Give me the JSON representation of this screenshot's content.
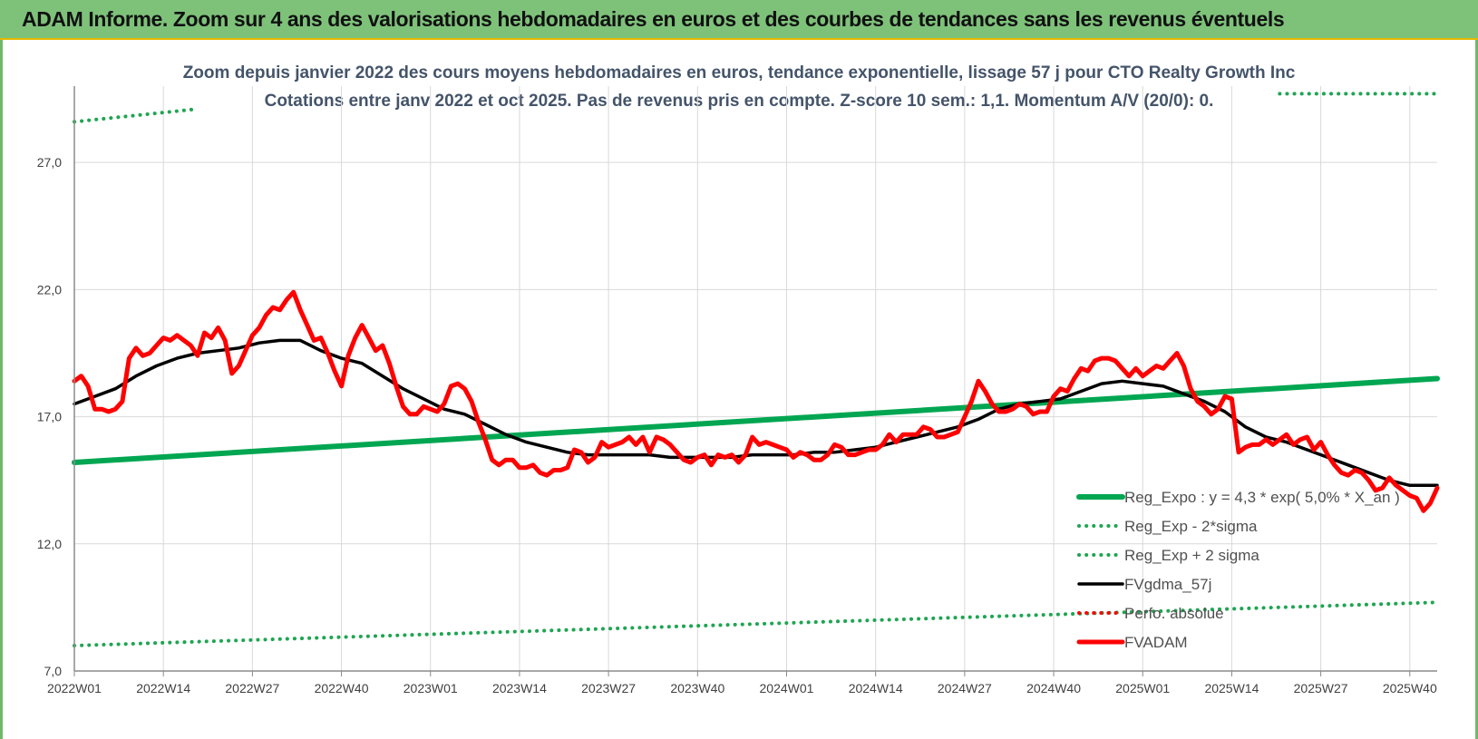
{
  "banner": {
    "title": "ADAM Informe. Zoom sur 4 ans des valorisations hebdomadaires en euros et des courbes de tendances sans les revenus éventuels"
  },
  "colors": {
    "green": "#00a651",
    "black": "#000000",
    "red": "#ff0000",
    "dotted_green": "#1fa552",
    "grid": "#d9d9d9",
    "banner": "#7ec27a"
  },
  "chart_data": {
    "type": "line",
    "title": "Zoom depuis janvier 2022 des cours moyens hebdomadaires en euros, tendance exponentielle, lissage 57 j pour CTO Realty Growth Inc",
    "subtitle": "Cotations entre janv 2022 et oct 2025. Pas de revenus pris en compte. Z-score 10 sem.: 1,1. Momentum A/V (20/0): 0.",
    "xlabel": "",
    "ylabel": "",
    "ylim": [
      7,
      30
    ],
    "yticks": [
      "7,0",
      "12,0",
      "17,0",
      "22,0",
      "27,0"
    ],
    "ytick_values": [
      7,
      12,
      17,
      22,
      27
    ],
    "grid": true,
    "legend_position": "right",
    "x_ticks": [
      {
        "label": "2022W01",
        "week": 0
      },
      {
        "label": "2022W14",
        "week": 13
      },
      {
        "label": "2022W27",
        "week": 26
      },
      {
        "label": "2022W40",
        "week": 39
      },
      {
        "label": "2023W01",
        "week": 52
      },
      {
        "label": "2023W14",
        "week": 65
      },
      {
        "label": "2023W27",
        "week": 78
      },
      {
        "label": "2023W40",
        "week": 91
      },
      {
        "label": "2024W01",
        "week": 104
      },
      {
        "label": "2024W14",
        "week": 117
      },
      {
        "label": "2024W27",
        "week": 130
      },
      {
        "label": "2024W40",
        "week": 143
      },
      {
        "label": "2025W01",
        "week": 156
      },
      {
        "label": "2025W14",
        "week": 169
      },
      {
        "label": "2025W27",
        "week": 182
      },
      {
        "label": "2025W40",
        "week": 195
      }
    ],
    "x_last_week": 199,
    "series": [
      {
        "name": "Reg_Expo : y = 4,3 * exp( 5,0% * X_an )",
        "style": "solid-green",
        "points": [
          [
            0,
            15.2
          ],
          [
            199,
            18.5
          ]
        ]
      },
      {
        "name": "Reg_Exp - 2*sigma",
        "style": "dotted-green",
        "points": [
          [
            0,
            8.0
          ],
          [
            199,
            9.7
          ]
        ]
      },
      {
        "name": "Reg_Exp + 2 sigma",
        "style": "dotted-green",
        "segments": [
          [
            [
              0,
              28.6
            ],
            [
              18,
              29.1
            ]
          ],
          [
            [
              176,
              29.7
            ],
            [
              199,
              29.7
            ]
          ]
        ]
      },
      {
        "name": "FVgdma_57j",
        "style": "solid-black",
        "points": [
          [
            0,
            17.5
          ],
          [
            3,
            17.8
          ],
          [
            6,
            18.1
          ],
          [
            9,
            18.6
          ],
          [
            12,
            19.0
          ],
          [
            15,
            19.3
          ],
          [
            18,
            19.5
          ],
          [
            21,
            19.6
          ],
          [
            24,
            19.7
          ],
          [
            27,
            19.9
          ],
          [
            30,
            20.0
          ],
          [
            33,
            20.0
          ],
          [
            36,
            19.6
          ],
          [
            39,
            19.3
          ],
          [
            42,
            19.1
          ],
          [
            45,
            18.6
          ],
          [
            48,
            18.1
          ],
          [
            51,
            17.7
          ],
          [
            54,
            17.3
          ],
          [
            57,
            17.1
          ],
          [
            60,
            16.7
          ],
          [
            63,
            16.3
          ],
          [
            66,
            16.0
          ],
          [
            69,
            15.8
          ],
          [
            72,
            15.6
          ],
          [
            75,
            15.5
          ],
          [
            78,
            15.5
          ],
          [
            81,
            15.5
          ],
          [
            84,
            15.5
          ],
          [
            87,
            15.4
          ],
          [
            90,
            15.4
          ],
          [
            93,
            15.4
          ],
          [
            96,
            15.4
          ],
          [
            99,
            15.5
          ],
          [
            102,
            15.5
          ],
          [
            105,
            15.5
          ],
          [
            108,
            15.6
          ],
          [
            111,
            15.6
          ],
          [
            114,
            15.7
          ],
          [
            117,
            15.8
          ],
          [
            120,
            16.0
          ],
          [
            123,
            16.2
          ],
          [
            126,
            16.4
          ],
          [
            129,
            16.6
          ],
          [
            132,
            16.9
          ],
          [
            135,
            17.3
          ],
          [
            138,
            17.5
          ],
          [
            141,
            17.6
          ],
          [
            144,
            17.7
          ],
          [
            147,
            18.0
          ],
          [
            150,
            18.3
          ],
          [
            153,
            18.4
          ],
          [
            156,
            18.3
          ],
          [
            159,
            18.2
          ],
          [
            162,
            17.9
          ],
          [
            165,
            17.6
          ],
          [
            168,
            17.2
          ],
          [
            171,
            16.6
          ],
          [
            174,
            16.2
          ],
          [
            177,
            16.0
          ],
          [
            180,
            15.7
          ],
          [
            183,
            15.4
          ],
          [
            186,
            15.1
          ],
          [
            189,
            14.8
          ],
          [
            192,
            14.5
          ],
          [
            195,
            14.3
          ],
          [
            199,
            14.3
          ]
        ]
      },
      {
        "name": "Perfo. absolue",
        "style": "dotted-red",
        "points": []
      },
      {
        "name": "FVADAM",
        "style": "solid-red",
        "points": [
          [
            0,
            18.4
          ],
          [
            1,
            18.6
          ],
          [
            2,
            18.2
          ],
          [
            3,
            17.3
          ],
          [
            4,
            17.3
          ],
          [
            5,
            17.2
          ],
          [
            6,
            17.3
          ],
          [
            7,
            17.6
          ],
          [
            8,
            19.3
          ],
          [
            9,
            19.7
          ],
          [
            10,
            19.4
          ],
          [
            11,
            19.5
          ],
          [
            12,
            19.8
          ],
          [
            13,
            20.1
          ],
          [
            14,
            20.0
          ],
          [
            15,
            20.2
          ],
          [
            16,
            20.0
          ],
          [
            17,
            19.8
          ],
          [
            18,
            19.4
          ],
          [
            19,
            20.3
          ],
          [
            20,
            20.1
          ],
          [
            21,
            20.5
          ],
          [
            22,
            20.0
          ],
          [
            23,
            18.7
          ],
          [
            24,
            19.0
          ],
          [
            25,
            19.6
          ],
          [
            26,
            20.2
          ],
          [
            27,
            20.5
          ],
          [
            28,
            21.0
          ],
          [
            29,
            21.3
          ],
          [
            30,
            21.2
          ],
          [
            31,
            21.6
          ],
          [
            32,
            21.9
          ],
          [
            33,
            21.2
          ],
          [
            34,
            20.6
          ],
          [
            35,
            20.0
          ],
          [
            36,
            20.1
          ],
          [
            37,
            19.5
          ],
          [
            38,
            18.8
          ],
          [
            39,
            18.2
          ],
          [
            40,
            19.4
          ],
          [
            41,
            20.1
          ],
          [
            42,
            20.6
          ],
          [
            43,
            20.1
          ],
          [
            44,
            19.6
          ],
          [
            45,
            19.8
          ],
          [
            46,
            19.1
          ],
          [
            47,
            18.2
          ],
          [
            48,
            17.4
          ],
          [
            49,
            17.1
          ],
          [
            50,
            17.1
          ],
          [
            51,
            17.4
          ],
          [
            52,
            17.3
          ],
          [
            53,
            17.2
          ],
          [
            54,
            17.5
          ],
          [
            55,
            18.2
          ],
          [
            56,
            18.3
          ],
          [
            57,
            18.1
          ],
          [
            58,
            17.6
          ],
          [
            59,
            16.8
          ],
          [
            60,
            16.1
          ],
          [
            61,
            15.3
          ],
          [
            62,
            15.1
          ],
          [
            63,
            15.3
          ],
          [
            64,
            15.3
          ],
          [
            65,
            15.0
          ],
          [
            66,
            15.0
          ],
          [
            67,
            15.1
          ],
          [
            68,
            14.8
          ],
          [
            69,
            14.7
          ],
          [
            70,
            14.9
          ],
          [
            71,
            14.9
          ],
          [
            72,
            15.0
          ],
          [
            73,
            15.7
          ],
          [
            74,
            15.6
          ],
          [
            75,
            15.2
          ],
          [
            76,
            15.4
          ],
          [
            77,
            16.0
          ],
          [
            78,
            15.8
          ],
          [
            79,
            15.9
          ],
          [
            80,
            16.0
          ],
          [
            81,
            16.2
          ],
          [
            82,
            15.9
          ],
          [
            83,
            16.2
          ],
          [
            84,
            15.6
          ],
          [
            85,
            16.2
          ],
          [
            86,
            16.1
          ],
          [
            87,
            15.9
          ],
          [
            88,
            15.6
          ],
          [
            89,
            15.3
          ],
          [
            90,
            15.2
          ],
          [
            91,
            15.4
          ],
          [
            92,
            15.5
          ],
          [
            93,
            15.1
          ],
          [
            94,
            15.5
          ],
          [
            95,
            15.4
          ],
          [
            96,
            15.5
          ],
          [
            97,
            15.2
          ],
          [
            98,
            15.5
          ],
          [
            99,
            16.2
          ],
          [
            100,
            15.9
          ],
          [
            101,
            16.0
          ],
          [
            102,
            15.9
          ],
          [
            103,
            15.8
          ],
          [
            104,
            15.7
          ],
          [
            105,
            15.4
          ],
          [
            106,
            15.6
          ],
          [
            107,
            15.5
          ],
          [
            108,
            15.3
          ],
          [
            109,
            15.3
          ],
          [
            110,
            15.5
          ],
          [
            111,
            15.9
          ],
          [
            112,
            15.8
          ],
          [
            113,
            15.5
          ],
          [
            114,
            15.5
          ],
          [
            115,
            15.6
          ],
          [
            116,
            15.7
          ],
          [
            117,
            15.7
          ],
          [
            118,
            15.9
          ],
          [
            119,
            16.3
          ],
          [
            120,
            16.0
          ],
          [
            121,
            16.3
          ],
          [
            122,
            16.3
          ],
          [
            123,
            16.3
          ],
          [
            124,
            16.6
          ],
          [
            125,
            16.5
          ],
          [
            126,
            16.2
          ],
          [
            127,
            16.2
          ],
          [
            128,
            16.3
          ],
          [
            129,
            16.4
          ],
          [
            130,
            17.0
          ],
          [
            131,
            17.6
          ],
          [
            132,
            18.4
          ],
          [
            133,
            18.0
          ],
          [
            134,
            17.5
          ],
          [
            135,
            17.2
          ],
          [
            136,
            17.2
          ],
          [
            137,
            17.3
          ],
          [
            138,
            17.5
          ],
          [
            139,
            17.4
          ],
          [
            140,
            17.1
          ],
          [
            141,
            17.2
          ],
          [
            142,
            17.2
          ],
          [
            143,
            17.8
          ],
          [
            144,
            18.1
          ],
          [
            145,
            18.0
          ],
          [
            146,
            18.5
          ],
          [
            147,
            18.9
          ],
          [
            148,
            18.8
          ],
          [
            149,
            19.2
          ],
          [
            150,
            19.3
          ],
          [
            151,
            19.3
          ],
          [
            152,
            19.2
          ],
          [
            153,
            18.9
          ],
          [
            154,
            18.6
          ],
          [
            155,
            18.9
          ],
          [
            156,
            18.6
          ],
          [
            157,
            18.8
          ],
          [
            158,
            19.0
          ],
          [
            159,
            18.9
          ],
          [
            160,
            19.2
          ],
          [
            161,
            19.5
          ],
          [
            162,
            19.0
          ],
          [
            163,
            18.1
          ],
          [
            164,
            17.6
          ],
          [
            165,
            17.4
          ],
          [
            166,
            17.1
          ],
          [
            167,
            17.3
          ],
          [
            168,
            17.8
          ],
          [
            169,
            17.7
          ],
          [
            170,
            15.6
          ],
          [
            171,
            15.8
          ],
          [
            172,
            15.9
          ],
          [
            173,
            15.9
          ],
          [
            174,
            16.1
          ],
          [
            175,
            15.9
          ],
          [
            176,
            16.1
          ],
          [
            177,
            16.3
          ],
          [
            178,
            15.9
          ],
          [
            179,
            16.1
          ],
          [
            180,
            16.2
          ],
          [
            181,
            15.7
          ],
          [
            182,
            16.0
          ],
          [
            183,
            15.5
          ],
          [
            184,
            15.1
          ],
          [
            185,
            14.8
          ],
          [
            186,
            14.7
          ],
          [
            187,
            14.9
          ],
          [
            188,
            14.8
          ],
          [
            189,
            14.5
          ],
          [
            190,
            14.1
          ],
          [
            191,
            14.2
          ],
          [
            192,
            14.6
          ],
          [
            193,
            14.3
          ],
          [
            194,
            14.1
          ],
          [
            195,
            13.9
          ],
          [
            196,
            13.8
          ],
          [
            197,
            13.3
          ],
          [
            198,
            13.6
          ],
          [
            199,
            14.2
          ]
        ]
      }
    ]
  }
}
